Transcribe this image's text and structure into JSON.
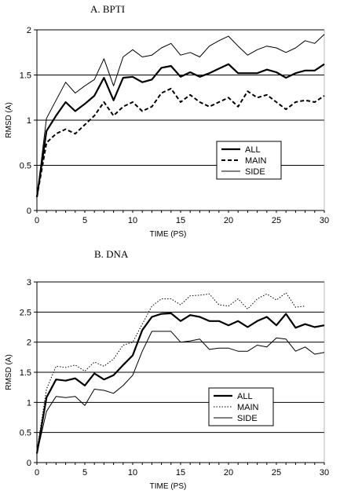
{
  "chart_data": [
    {
      "type": "line",
      "title": "A. BPTI",
      "xlabel": "TIME (PS)",
      "ylabel": "RMSD (A)",
      "xlim": [
        0,
        30
      ],
      "ylim": [
        0,
        2
      ],
      "xticks": [
        0,
        5,
        10,
        15,
        20,
        25,
        30
      ],
      "yticks": [
        0,
        0.5,
        1,
        1.5,
        2
      ],
      "ytick_labels": [
        "0",
        "0.5",
        "1",
        "1.5",
        "2"
      ],
      "grid": "horizontal",
      "legend": "center-right",
      "series": [
        {
          "name": "ALL",
          "style": "solid",
          "width": 2.2,
          "x": [
            0,
            1,
            2,
            3,
            4,
            5,
            6,
            7,
            8,
            9,
            10,
            11,
            12,
            13,
            14,
            15,
            16,
            17,
            18,
            19,
            20,
            21,
            22,
            23,
            24,
            25,
            26,
            27,
            28,
            29,
            30
          ],
          "y": [
            0.15,
            0.88,
            1.05,
            1.2,
            1.1,
            1.18,
            1.27,
            1.47,
            1.22,
            1.47,
            1.48,
            1.42,
            1.45,
            1.58,
            1.6,
            1.48,
            1.53,
            1.48,
            1.52,
            1.57,
            1.62,
            1.52,
            1.52,
            1.52,
            1.56,
            1.53,
            1.47,
            1.52,
            1.55,
            1.55,
            1.62
          ]
        },
        {
          "name": "MAIN",
          "style": "dashed",
          "width": 2,
          "x": [
            0,
            1,
            2,
            3,
            4,
            5,
            6,
            7,
            8,
            9,
            10,
            11,
            12,
            13,
            14,
            15,
            16,
            17,
            18,
            19,
            20,
            21,
            22,
            23,
            24,
            25,
            26,
            27,
            28,
            29,
            30
          ],
          "y": [
            0.15,
            0.75,
            0.85,
            0.9,
            0.85,
            0.95,
            1.05,
            1.2,
            1.05,
            1.15,
            1.2,
            1.1,
            1.15,
            1.3,
            1.35,
            1.2,
            1.28,
            1.2,
            1.15,
            1.2,
            1.25,
            1.15,
            1.32,
            1.25,
            1.28,
            1.2,
            1.12,
            1.2,
            1.22,
            1.2,
            1.27
          ]
        },
        {
          "name": "SIDE",
          "style": "solid",
          "width": 1,
          "x": [
            0,
            1,
            2,
            3,
            4,
            5,
            6,
            7,
            8,
            9,
            10,
            11,
            12,
            13,
            14,
            15,
            16,
            17,
            18,
            19,
            20,
            21,
            22,
            23,
            24,
            25,
            26,
            27,
            28,
            29,
            30
          ],
          "y": [
            0.15,
            1.02,
            1.22,
            1.42,
            1.3,
            1.38,
            1.45,
            1.68,
            1.38,
            1.7,
            1.78,
            1.7,
            1.72,
            1.8,
            1.85,
            1.72,
            1.75,
            1.7,
            1.82,
            1.88,
            1.93,
            1.82,
            1.72,
            1.78,
            1.82,
            1.8,
            1.75,
            1.8,
            1.88,
            1.85,
            1.95
          ]
        }
      ]
    },
    {
      "type": "line",
      "title": "B. DNA",
      "xlabel": "TIME (PS)",
      "ylabel": "RMSD (A)",
      "xlim": [
        0,
        30
      ],
      "ylim": [
        0,
        3
      ],
      "xticks": [
        0,
        5,
        10,
        15,
        20,
        25,
        30
      ],
      "yticks": [
        0,
        0.5,
        1,
        1.5,
        2,
        2.5,
        3
      ],
      "ytick_labels": [
        "0",
        "0.5",
        "1",
        "1.5",
        "2",
        "2.5",
        "3"
      ],
      "grid": "horizontal",
      "legend": "center",
      "series": [
        {
          "name": "ALL",
          "style": "solid",
          "width": 2.2,
          "x": [
            0,
            1,
            2,
            3,
            4,
            5,
            6,
            7,
            8,
            9,
            10,
            11,
            12,
            13,
            14,
            15,
            16,
            17,
            18,
            19,
            20,
            21,
            22,
            23,
            24,
            25,
            26,
            27,
            28,
            29,
            30
          ],
          "y": [
            0.15,
            1.08,
            1.38,
            1.36,
            1.4,
            1.28,
            1.48,
            1.38,
            1.45,
            1.62,
            1.78,
            2.2,
            2.42,
            2.47,
            2.48,
            2.35,
            2.45,
            2.42,
            2.35,
            2.35,
            2.28,
            2.35,
            2.25,
            2.35,
            2.42,
            2.28,
            2.47,
            2.24,
            2.3,
            2.25,
            2.28
          ]
        },
        {
          "name": "MAIN",
          "style": "dotted",
          "width": 1,
          "x": [
            0,
            1,
            2,
            3,
            4,
            5,
            6,
            7,
            8,
            9,
            10,
            11,
            12,
            13,
            14,
            15,
            16,
            17,
            18,
            19,
            20,
            21,
            22,
            23,
            24,
            25,
            26,
            27,
            28
          ],
          "y": [
            0.2,
            1.22,
            1.6,
            1.58,
            1.62,
            1.52,
            1.67,
            1.6,
            1.72,
            1.95,
            2.0,
            2.3,
            2.6,
            2.72,
            2.72,
            2.62,
            2.77,
            2.78,
            2.8,
            2.62,
            2.6,
            2.72,
            2.55,
            2.72,
            2.8,
            2.7,
            2.82,
            2.58,
            2.6
          ]
        },
        {
          "name": "SIDE",
          "style": "solid",
          "width": 1,
          "x": [
            0,
            1,
            2,
            3,
            4,
            5,
            6,
            7,
            8,
            9,
            10,
            11,
            12,
            13,
            14,
            15,
            16,
            17,
            18,
            19,
            20,
            21,
            22,
            23,
            24,
            25,
            26,
            27,
            28,
            29,
            30
          ],
          "y": [
            0.15,
            0.85,
            1.1,
            1.08,
            1.1,
            0.95,
            1.22,
            1.2,
            1.15,
            1.28,
            1.45,
            1.85,
            2.18,
            2.18,
            2.18,
            2.0,
            2.02,
            2.05,
            1.88,
            1.9,
            1.9,
            1.85,
            1.85,
            1.95,
            1.92,
            2.07,
            2.05,
            1.85,
            1.92,
            1.8,
            1.83
          ]
        }
      ]
    }
  ]
}
